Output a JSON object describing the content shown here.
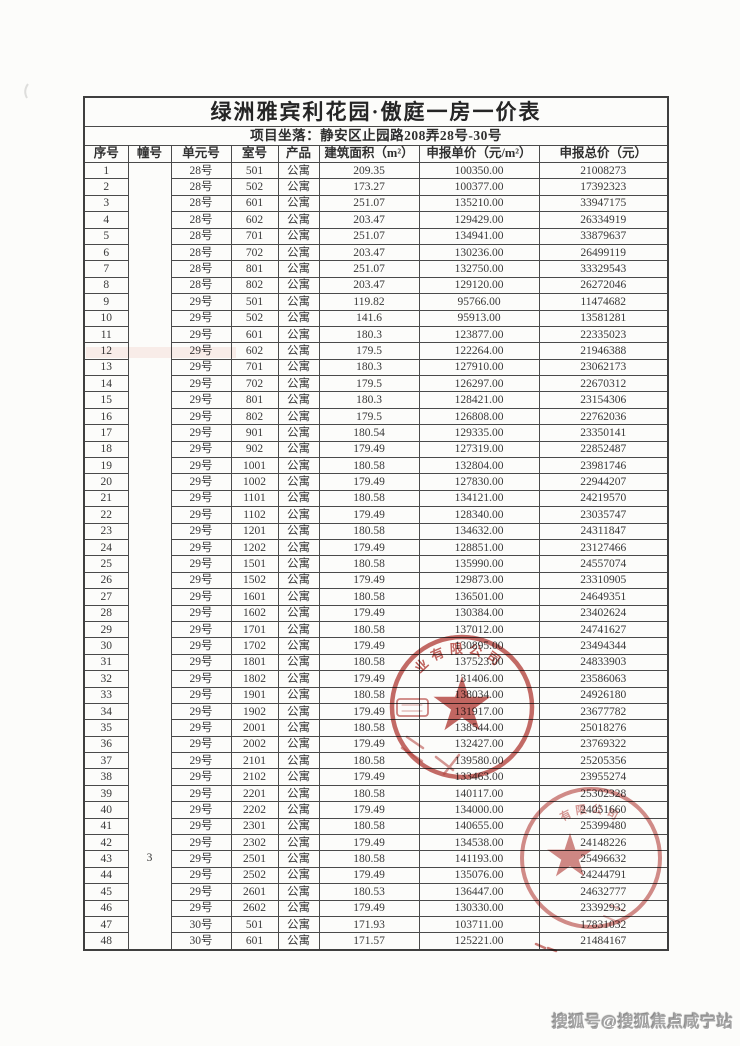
{
  "document": {
    "title": "绿洲雅宾利花园·傲庭一房一价表",
    "subtitle": "项目坐落：静安区止园路208弄28号-30号"
  },
  "table": {
    "headers": [
      "序号",
      "幢号",
      "单元号",
      "室号",
      "产品",
      "建筑面积（m²）",
      "申报单价（元/m²）",
      "申报总价（元）"
    ],
    "building_no": "3",
    "rows": [
      [
        "1",
        "28号",
        "501",
        "公寓",
        "209.35",
        "100350.00",
        "21008273"
      ],
      [
        "2",
        "28号",
        "502",
        "公寓",
        "173.27",
        "100377.00",
        "17392323"
      ],
      [
        "3",
        "28号",
        "601",
        "公寓",
        "251.07",
        "135210.00",
        "33947175"
      ],
      [
        "4",
        "28号",
        "602",
        "公寓",
        "203.47",
        "129429.00",
        "26334919"
      ],
      [
        "5",
        "28号",
        "701",
        "公寓",
        "251.07",
        "134941.00",
        "33879637"
      ],
      [
        "6",
        "28号",
        "702",
        "公寓",
        "203.47",
        "130236.00",
        "26499119"
      ],
      [
        "7",
        "28号",
        "801",
        "公寓",
        "251.07",
        "132750.00",
        "33329543"
      ],
      [
        "8",
        "28号",
        "802",
        "公寓",
        "203.47",
        "129120.00",
        "26272046"
      ],
      [
        "9",
        "29号",
        "501",
        "公寓",
        "119.82",
        "95766.00",
        "11474682"
      ],
      [
        "10",
        "29号",
        "502",
        "公寓",
        "141.6",
        "95913.00",
        "13581281"
      ],
      [
        "11",
        "29号",
        "601",
        "公寓",
        "180.3",
        "123877.00",
        "22335023"
      ],
      [
        "12",
        "29号",
        "602",
        "公寓",
        "179.5",
        "122264.00",
        "21946388"
      ],
      [
        "13",
        "29号",
        "701",
        "公寓",
        "180.3",
        "127910.00",
        "23062173"
      ],
      [
        "14",
        "29号",
        "702",
        "公寓",
        "179.5",
        "126297.00",
        "22670312"
      ],
      [
        "15",
        "29号",
        "801",
        "公寓",
        "180.3",
        "128421.00",
        "23154306"
      ],
      [
        "16",
        "29号",
        "802",
        "公寓",
        "179.5",
        "126808.00",
        "22762036"
      ],
      [
        "17",
        "29号",
        "901",
        "公寓",
        "180.54",
        "129335.00",
        "23350141"
      ],
      [
        "18",
        "29号",
        "902",
        "公寓",
        "179.49",
        "127319.00",
        "22852487"
      ],
      [
        "19",
        "29号",
        "1001",
        "公寓",
        "180.58",
        "132804.00",
        "23981746"
      ],
      [
        "20",
        "29号",
        "1002",
        "公寓",
        "179.49",
        "127830.00",
        "22944207"
      ],
      [
        "21",
        "29号",
        "1101",
        "公寓",
        "180.58",
        "134121.00",
        "24219570"
      ],
      [
        "22",
        "29号",
        "1102",
        "公寓",
        "179.49",
        "128340.00",
        "23035747"
      ],
      [
        "23",
        "29号",
        "1201",
        "公寓",
        "180.58",
        "134632.00",
        "24311847"
      ],
      [
        "24",
        "29号",
        "1202",
        "公寓",
        "179.49",
        "128851.00",
        "23127466"
      ],
      [
        "25",
        "29号",
        "1501",
        "公寓",
        "180.58",
        "135990.00",
        "24557074"
      ],
      [
        "26",
        "29号",
        "1502",
        "公寓",
        "179.49",
        "129873.00",
        "23310905"
      ],
      [
        "27",
        "29号",
        "1601",
        "公寓",
        "180.58",
        "136501.00",
        "24649351"
      ],
      [
        "28",
        "29号",
        "1602",
        "公寓",
        "179.49",
        "130384.00",
        "23402624"
      ],
      [
        "29",
        "29号",
        "1701",
        "公寓",
        "180.58",
        "137012.00",
        "24741627"
      ],
      [
        "30",
        "29号",
        "1702",
        "公寓",
        "179.49",
        "130895.00",
        "23494344"
      ],
      [
        "31",
        "29号",
        "1801",
        "公寓",
        "180.58",
        "137523.00",
        "24833903"
      ],
      [
        "32",
        "29号",
        "1802",
        "公寓",
        "179.49",
        "131406.00",
        "23586063"
      ],
      [
        "33",
        "29号",
        "1901",
        "公寓",
        "180.58",
        "138034.00",
        "24926180"
      ],
      [
        "34",
        "29号",
        "1902",
        "公寓",
        "179.49",
        "131917.00",
        "23677782"
      ],
      [
        "35",
        "29号",
        "2001",
        "公寓",
        "180.58",
        "138544.00",
        "25018276"
      ],
      [
        "36",
        "29号",
        "2002",
        "公寓",
        "179.49",
        "132427.00",
        "23769322"
      ],
      [
        "37",
        "29号",
        "2101",
        "公寓",
        "180.58",
        "139580.00",
        "25205356"
      ],
      [
        "38",
        "29号",
        "2102",
        "公寓",
        "179.49",
        "133463.00",
        "23955274"
      ],
      [
        "39",
        "29号",
        "2201",
        "公寓",
        "180.58",
        "140117.00",
        "25302328"
      ],
      [
        "40",
        "29号",
        "2202",
        "公寓",
        "179.49",
        "134000.00",
        "24051660"
      ],
      [
        "41",
        "29号",
        "2301",
        "公寓",
        "180.58",
        "140655.00",
        "25399480"
      ],
      [
        "42",
        "29号",
        "2302",
        "公寓",
        "179.49",
        "134538.00",
        "24148226"
      ],
      [
        "43",
        "29号",
        "2501",
        "公寓",
        "180.58",
        "141193.00",
        "25496632"
      ],
      [
        "44",
        "29号",
        "2502",
        "公寓",
        "179.49",
        "135076.00",
        "24244791"
      ],
      [
        "45",
        "29号",
        "2601",
        "公寓",
        "180.53",
        "136447.00",
        "24632777"
      ],
      [
        "46",
        "29号",
        "2602",
        "公寓",
        "179.49",
        "130330.00",
        "23392932"
      ],
      [
        "47",
        "30号",
        "501",
        "公寓",
        "171.93",
        "103711.00",
        "17831032"
      ],
      [
        "48",
        "30号",
        "601",
        "公寓",
        "171.57",
        "125221.00",
        "21484167"
      ]
    ]
  },
  "stamps": {
    "color": "#b5413c",
    "seal_text_1": "业有限公司",
    "seal_text_2": "有限公司"
  },
  "watermark": {
    "text": "搜狐号@搜狐焦点咸宁站"
  }
}
